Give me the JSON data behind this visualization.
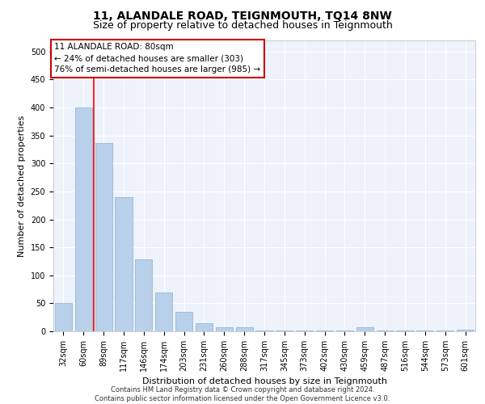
{
  "title": "11, ALANDALE ROAD, TEIGNMOUTH, TQ14 8NW",
  "subtitle": "Size of property relative to detached houses in Teignmouth",
  "xlabel": "Distribution of detached houses by size in Teignmouth",
  "ylabel": "Number of detached properties",
  "footer_line1": "Contains HM Land Registry data © Crown copyright and database right 2024.",
  "footer_line2": "Contains public sector information licensed under the Open Government Licence v3.0.",
  "bar_values": [
    50,
    400,
    337,
    240,
    128,
    70,
    35,
    15,
    7,
    7,
    2,
    2,
    2,
    2,
    2,
    7,
    2,
    2,
    2,
    2,
    3
  ],
  "bar_labels": [
    "32sqm",
    "60sqm",
    "89sqm",
    "117sqm",
    "146sqm",
    "174sqm",
    "203sqm",
    "231sqm",
    "260sqm",
    "288sqm",
    "317sqm",
    "345sqm",
    "373sqm",
    "402sqm",
    "430sqm",
    "459sqm",
    "487sqm",
    "516sqm",
    "544sqm",
    "573sqm",
    "601sqm"
  ],
  "bar_color": "#b8d0ea",
  "bar_edge_color": "#8ab0d0",
  "red_line_x": 1.5,
  "annotation_line1": "11 ALANDALE ROAD: 80sqm",
  "annotation_line2": "← 24% of detached houses are smaller (303)",
  "annotation_line3": "76% of semi-detached houses are larger (985) →",
  "annotation_box_color": "#ffffff",
  "annotation_box_edge_color": "#cc0000",
  "ylim": [
    0,
    520
  ],
  "yticks": [
    0,
    50,
    100,
    150,
    200,
    250,
    300,
    350,
    400,
    450,
    500
  ],
  "bg_color": "#eef2fb",
  "title_fontsize": 10,
  "subtitle_fontsize": 9,
  "xlabel_fontsize": 8,
  "ylabel_fontsize": 8,
  "tick_fontsize": 7,
  "annotation_fontsize": 7.5,
  "footer_fontsize": 6
}
